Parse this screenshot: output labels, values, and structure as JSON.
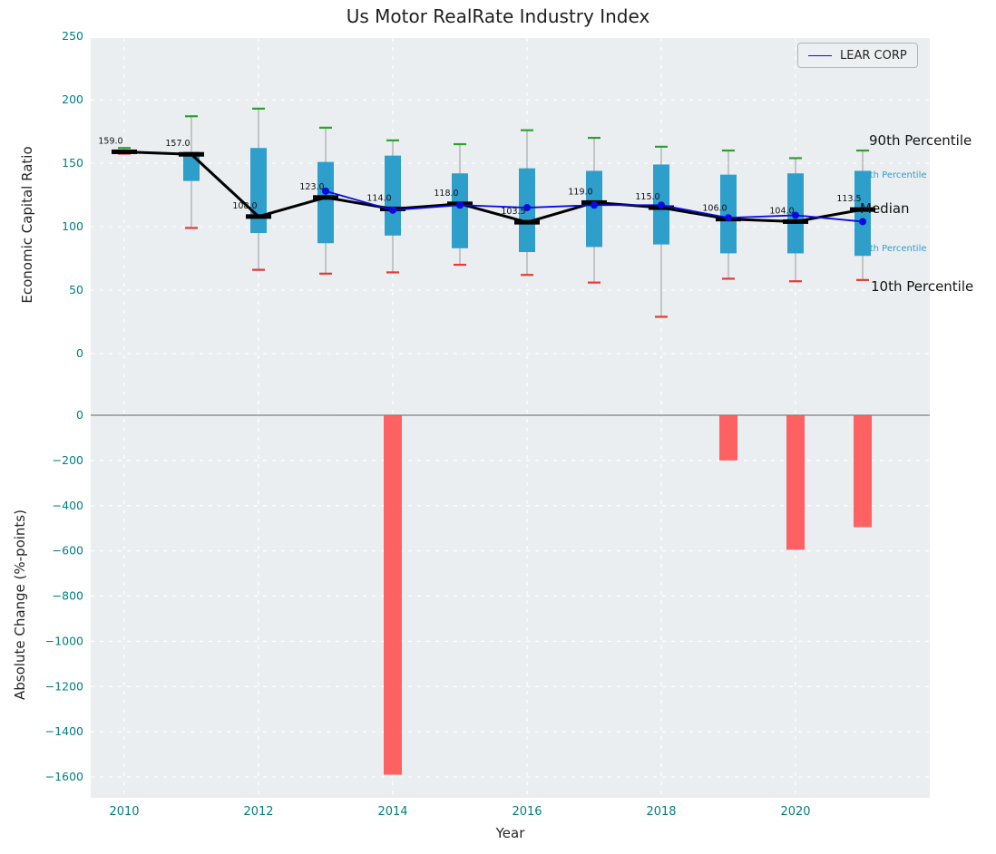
{
  "title": "Us Motor RealRate Industry Index",
  "axes": {
    "x_label": "Year",
    "top_y_label": "Economic Capital Ratio",
    "bottom_y_label": "Absolute Change (%-points)"
  },
  "legend": {
    "label": "LEAR CORP"
  },
  "annotations": {
    "p90": "90th Percentile",
    "p75": "75th Percentile",
    "median": "Median",
    "p25": "25th Percentile",
    "p10": "10th Percentile"
  },
  "colors": {
    "plot_background": "#eaeef0",
    "grid": "#ffffff",
    "box_fill": "#2e9fcb",
    "median_color": "#000000",
    "p90_cap": "#2ca02c",
    "p10_cap": "#e53935",
    "bar_fill": "#ff4d4d",
    "lear_line": "#0b0be0",
    "tick_label": "#008080",
    "whisker": "#9a9a9a",
    "zero_line": "#808080"
  },
  "chart_data": [
    {
      "type": "boxplot",
      "panel": "top",
      "title": "Us Motor RealRate Industry Index",
      "ylabel": "Economic Capital Ratio",
      "ylim": [
        0,
        250
      ],
      "yticks": [
        0,
        50,
        100,
        150,
        200,
        250
      ],
      "xticks": [
        2010,
        2012,
        2014,
        2016,
        2018,
        2020
      ],
      "years": [
        2010,
        2011,
        2012,
        2013,
        2014,
        2015,
        2016,
        2017,
        2018,
        2019,
        2020,
        2021
      ],
      "p90": [
        162,
        187,
        193,
        178,
        168,
        165,
        176,
        170,
        163,
        160,
        154,
        160
      ],
      "q3": [
        160.5,
        159,
        162,
        151,
        156,
        142,
        146,
        144,
        149,
        141,
        142,
        144
      ],
      "median": [
        159,
        157,
        108,
        123,
        114,
        118,
        103.5,
        119,
        115,
        106,
        104,
        113.5
      ],
      "q1": [
        158,
        136,
        95,
        87,
        93,
        83,
        80,
        84,
        86,
        79,
        79,
        77
      ],
      "p10": [
        157.5,
        99,
        66,
        63,
        64,
        70,
        62,
        56,
        29,
        59,
        57,
        58
      ],
      "median_labels": [
        "159.0",
        "157.0",
        "108.0",
        "123.0",
        "114.0",
        "118.0",
        "103.5",
        "119.0",
        "115.0",
        "106.0",
        "104.0",
        "113.5"
      ],
      "series": [
        {
          "name": "LEAR CORP",
          "x": [
            2013,
            2014,
            2015,
            2016,
            2017,
            2018,
            2019,
            2020,
            2021
          ],
          "y": [
            128,
            113,
            117,
            115,
            117,
            117,
            107,
            109,
            104
          ]
        }
      ]
    },
    {
      "type": "bar",
      "panel": "bottom",
      "ylabel": "Absolute Change (%-points)",
      "xlabel": "Year",
      "ylim": [
        -1600,
        0
      ],
      "yticks": [
        0,
        -200,
        -400,
        -600,
        -800,
        -1000,
        -1200,
        -1400,
        -1600
      ],
      "categories": [
        2014,
        2019,
        2020,
        2021
      ],
      "values": [
        -1590,
        -200,
        -595,
        -495
      ]
    }
  ]
}
